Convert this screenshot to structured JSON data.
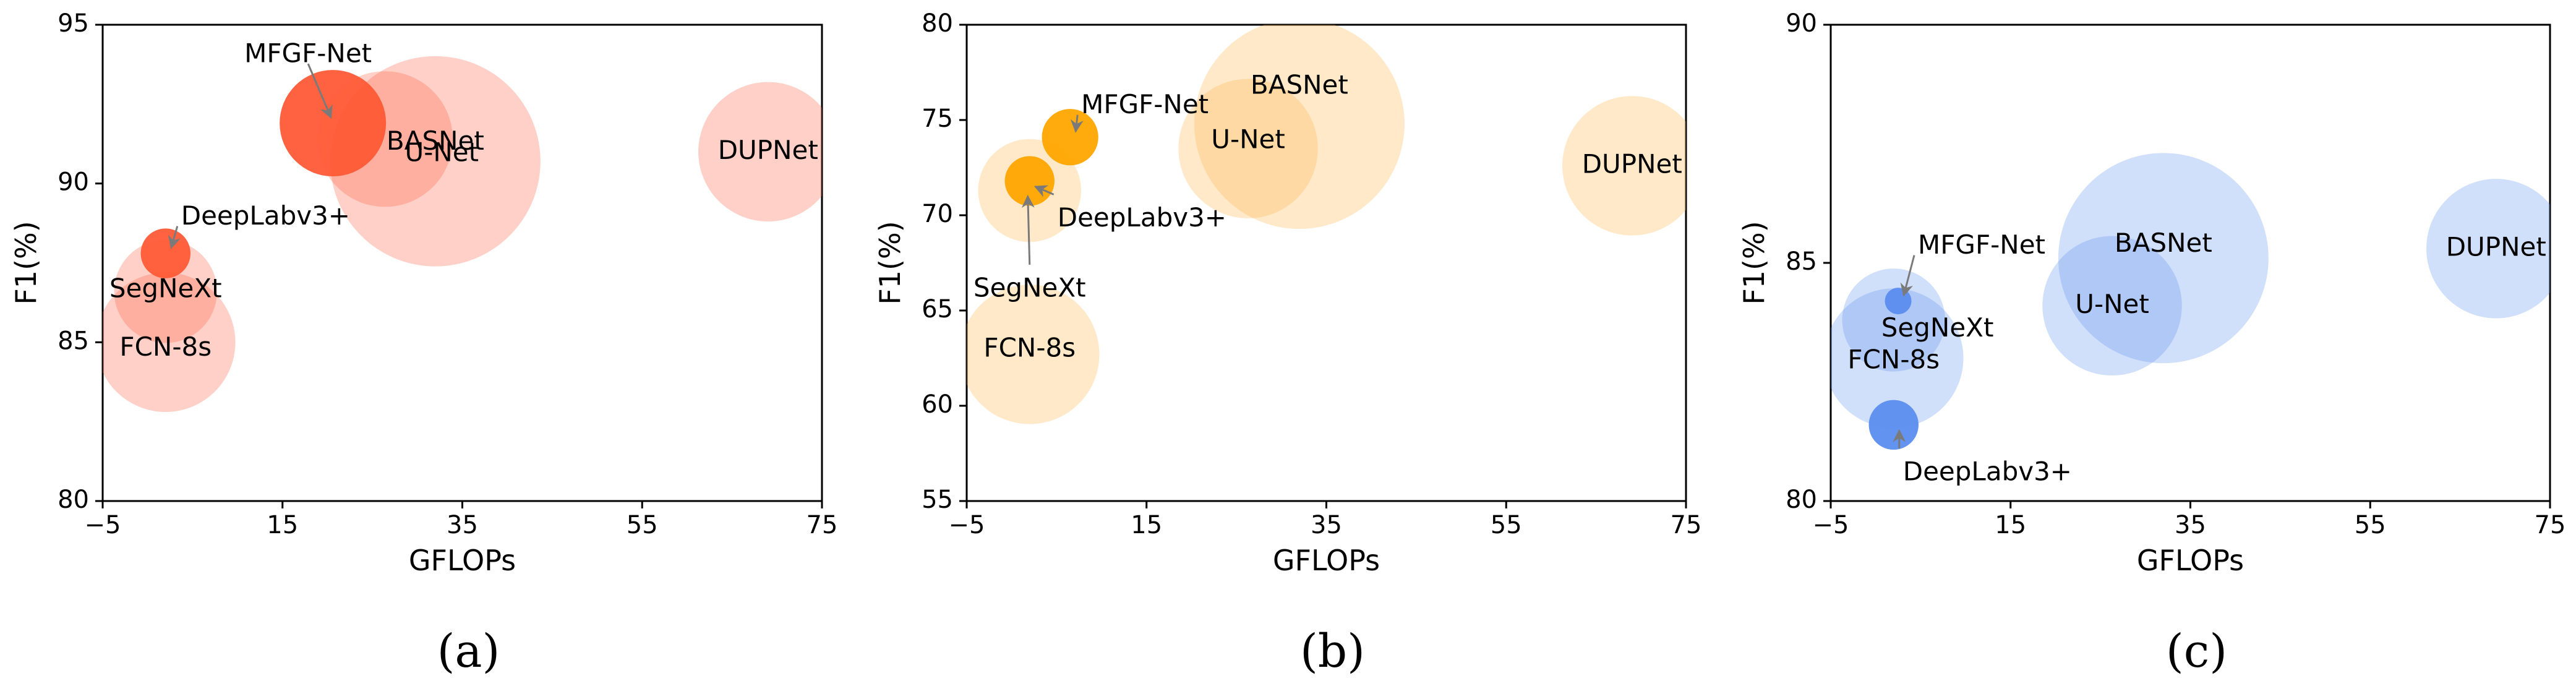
{
  "figure": {
    "panels": [
      {
        "caption": "(a)"
      },
      {
        "caption": "(b)"
      },
      {
        "caption": "(c)"
      }
    ]
  },
  "chart_data": [
    {
      "type": "scatter",
      "subtype": "bubble",
      "caption": "(a)",
      "xlabel": "GFLOPs",
      "ylabel": "F1(%)",
      "xlim": [
        -5,
        75
      ],
      "ylim": [
        80,
        95
      ],
      "xticks": [
        -5,
        15,
        35,
        55,
        75
      ],
      "xtick_labels": [
        "−5",
        "15",
        "35",
        "55",
        "75"
      ],
      "yticks": [
        80,
        85,
        90,
        95
      ],
      "color": "#ff6347",
      "highlight_color": "#ff5a36",
      "points": [
        {
          "name": "FCN-8s",
          "x": 2.0,
          "y": 85.0,
          "size": 0.55
        },
        {
          "name": "SegNeXt",
          "x": 2.0,
          "y": 86.6,
          "size": 0.3
        },
        {
          "name": "DeepLabv3+",
          "x": 2.0,
          "y": 87.8,
          "size": 0.07
        },
        {
          "name": "MFGF-Net",
          "x": 20.6,
          "y": 91.9,
          "size": 0.32
        },
        {
          "name": "U-Net",
          "x": 26.4,
          "y": 91.4,
          "size": 0.52
        },
        {
          "name": "BASNet",
          "x": 32.0,
          "y": 90.7,
          "size": 1.25
        },
        {
          "name": "DUPNet",
          "x": 69.0,
          "y": 91.0,
          "size": 0.55
        }
      ]
    },
    {
      "type": "scatter",
      "subtype": "bubble",
      "caption": "(b)",
      "xlabel": "GFLOPs",
      "ylabel": "F1(%)",
      "xlim": [
        -5,
        75
      ],
      "ylim": [
        55,
        80
      ],
      "xticks": [
        -5,
        15,
        35,
        55,
        75
      ],
      "xtick_labels": [
        "−5",
        "15",
        "35",
        "55",
        "75"
      ],
      "yticks": [
        55,
        60,
        65,
        70,
        75,
        80
      ],
      "color": "#ffb74d",
      "highlight_color": "#ffa500",
      "points": [
        {
          "name": "FCN-8s",
          "x": 2.0,
          "y": 62.7,
          "size": 0.55
        },
        {
          "name": "SegNeXt",
          "x": 2.0,
          "y": 71.3,
          "size": 0.3
        },
        {
          "name": "DeepLabv3+",
          "x": 2.0,
          "y": 71.8,
          "size": 0.07
        },
        {
          "name": "MFGF-Net",
          "x": 6.5,
          "y": 74.1,
          "size": 0.09
        },
        {
          "name": "U-Net",
          "x": 26.3,
          "y": 73.5,
          "size": 0.55
        },
        {
          "name": "BASNet",
          "x": 32.0,
          "y": 74.8,
          "size": 1.25
        },
        {
          "name": "DUPNet",
          "x": 69.0,
          "y": 72.6,
          "size": 0.55
        }
      ]
    },
    {
      "type": "scatter",
      "subtype": "bubble",
      "caption": "(c)",
      "xlabel": "GFLOPs",
      "ylabel": "F1(%)",
      "xlim": [
        -5,
        75
      ],
      "ylim": [
        80,
        90
      ],
      "xticks": [
        -5,
        15,
        35,
        55,
        75
      ],
      "xtick_labels": [
        "−5",
        "15",
        "35",
        "55",
        "75"
      ],
      "yticks": [
        80,
        85,
        90
      ],
      "color": "#6495ed",
      "highlight_color": "#5b8def",
      "points": [
        {
          "name": "FCN-8s",
          "x": 2.0,
          "y": 83.0,
          "size": 0.55
        },
        {
          "name": "SegNeXt",
          "x": 2.0,
          "y": 83.8,
          "size": 0.3
        },
        {
          "name": "DeepLabv3+",
          "x": 2.0,
          "y": 81.6,
          "size": 0.07
        },
        {
          "name": "MFGF-Net",
          "x": 2.5,
          "y": 84.2,
          "size": 0.02
        },
        {
          "name": "U-Net",
          "x": 26.3,
          "y": 84.1,
          "size": 0.55
        },
        {
          "name": "BASNet",
          "x": 32.0,
          "y": 85.1,
          "size": 1.25
        },
        {
          "name": "DUPNet",
          "x": 69.0,
          "y": 85.3,
          "size": 0.55
        }
      ]
    }
  ]
}
